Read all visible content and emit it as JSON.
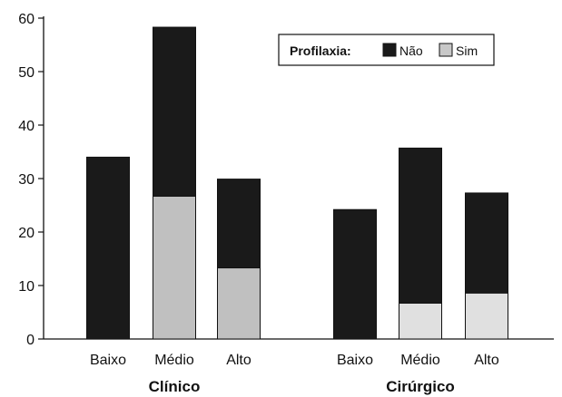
{
  "chart_data": {
    "type": "bar",
    "stacked": true,
    "groups": [
      {
        "label": "Clínico",
        "categories": [
          "Baixo",
          "Médio",
          "Alto"
        ]
      },
      {
        "label": "Cirúrgico",
        "categories": [
          "Baixo",
          "Médio",
          "Alto"
        ]
      }
    ],
    "series": [
      {
        "name": "Sim",
        "color_clinico": "#c0c0c0",
        "color_cirurgico": "#e0e0e0",
        "values": [
          [
            0,
            26.7,
            13.3
          ],
          [
            0,
            6.7,
            8.6
          ]
        ]
      },
      {
        "name": "Não",
        "color": "#1a1a1a",
        "values": [
          [
            34,
            31.6,
            16.6
          ],
          [
            24.2,
            29.0,
            18.7
          ]
        ]
      }
    ],
    "legend": {
      "title": "Profilaxia:",
      "items": [
        "Não",
        "Sim"
      ],
      "position": "top-right"
    },
    "y_ticks": [
      "0",
      "10",
      "20",
      "30",
      "40",
      "50",
      "60"
    ],
    "ylim": [
      0,
      60
    ],
    "grid": false
  }
}
